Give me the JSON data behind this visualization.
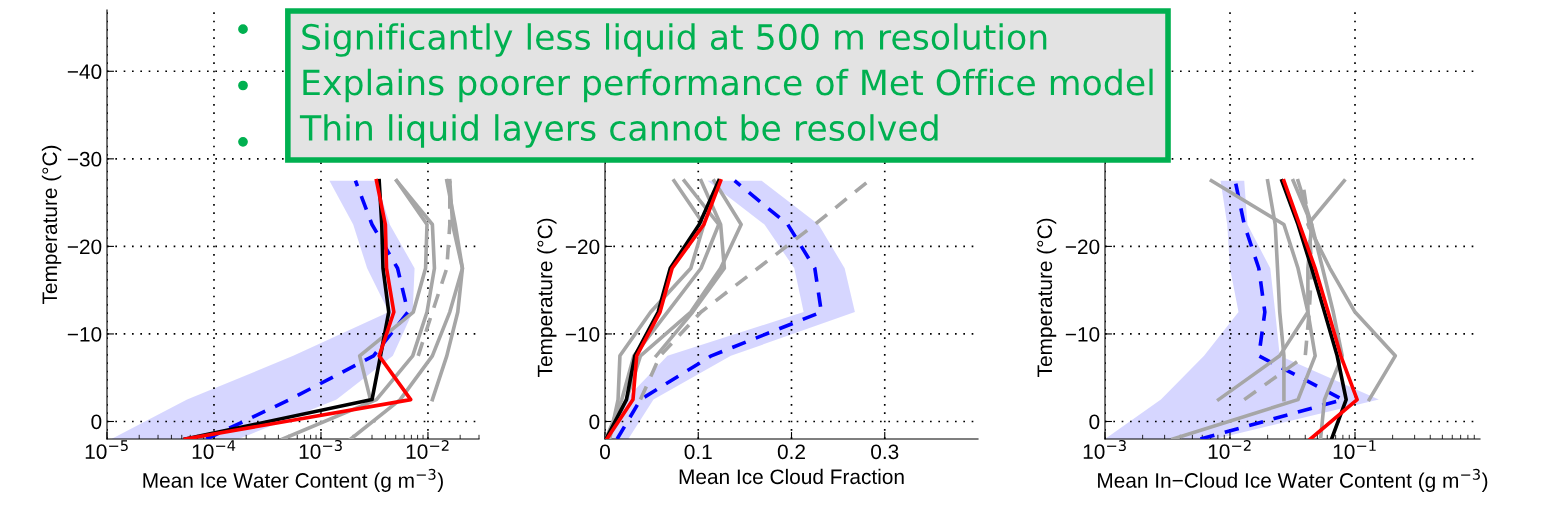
{
  "chart_data": [
    {
      "type": "line",
      "orientation": "horizontal",
      "log": "x",
      "grid": true,
      "xlabel": "Mean Ice Water Content (g m$^{−3}$)",
      "ylabel": "Temperature (°C)",
      "xlim": [
        1e-05,
        0.03
      ],
      "xticks": [
        {
          "value": 1e-05,
          "label": "10$^{−5}$"
        },
        {
          "value": 0.0001,
          "label": "10$^{−4}$"
        },
        {
          "value": 0.001,
          "label": "10$^{−3}$"
        },
        {
          "value": 0.01,
          "label": "10$^{−2}$"
        }
      ],
      "ylim": [
        2,
        -47
      ],
      "yticks": [
        {
          "value": 0,
          "label": "0"
        },
        {
          "value": -10,
          "label": "−10"
        },
        {
          "value": -20,
          "label": "−20"
        },
        {
          "value": -30,
          "label": "−30"
        },
        {
          "value": -40,
          "label": "−40"
        }
      ],
      "x": [
        2,
        -2.5,
        -7.5,
        -12.5,
        -17.5,
        -22.5,
        -27.5
      ],
      "annotations": [
        "Significantly less liquid at 500 m resolution",
        "Explains poorer performance of Met Office model",
        "Thin liquid layers cannot be resolved"
      ],
      "series": [
        {
          "color": "#0000ff",
          "line_style": "dashed",
          "values": [
            8.5e-05,
            0.00051,
            0.0031,
            0.0065,
            0.0052,
            0.003,
            0.0021
          ],
          "lower": [
            1.1e-05,
            5.6e-05,
            0.00055,
            0.0043,
            0.0027,
            0.002,
            0.0012
          ],
          "upper": [
            0.00017,
            0.0014,
            0.0047,
            0.0072,
            0.0075,
            0.0044,
            0.0033
          ]
        },
        {
          "color": "#a6a6a6",
          "line_style": "solid",
          "values": [
            0.00044,
            0.0033,
            0.0072,
            0.0098,
            0.0115,
            0.011,
            0.0051
          ]
        },
        {
          "color": "#a6a6a6",
          "line_style": "solid",
          "values": [
            0.0019,
            0.0055,
            0.011,
            0.016,
            0.021,
            0.018,
            0.015
          ]
        },
        {
          "color": "#a6a6a6",
          "line_style": "solid",
          "values": [
            null,
            0.011,
            0.015,
            0.019,
            0.021,
            0.017,
            0.016
          ]
        },
        {
          "color": "#a6a6a6",
          "line_style": "solid",
          "values": [
            null,
            0.0029,
            0.0023,
            0.0073,
            0.0095,
            0.0098,
            0.0051
          ]
        },
        {
          "color": "#a6a6a6",
          "line_style": "dashed",
          "values": [
            null,
            null,
            0.0081,
            0.011,
            0.015,
            0.016,
            0.016
          ]
        },
        {
          "color": "#000000",
          "line_style": "solid",
          "values": [
            5.4e-05,
            0.003,
            0.0036,
            0.0043,
            0.0038,
            0.0037,
            0.0035
          ]
        },
        {
          "color": "#ff0000",
          "line_style": "solid",
          "values": [
            5.4e-05,
            0.0069,
            0.0035,
            0.0048,
            0.0041,
            0.004,
            0.0033
          ]
        }
      ]
    },
    {
      "type": "line",
      "orientation": "horizontal",
      "grid": true,
      "xlabel": "Mean Ice Cloud Fraction",
      "ylabel": "Temperature (°C)",
      "xlim": [
        0,
        0.4
      ],
      "xticks": [
        0,
        0.1,
        0.2,
        0.3
      ],
      "ylim": [
        2,
        -47
      ],
      "yticks": [
        {
          "value": 0,
          "label": "0"
        },
        {
          "value": -10,
          "label": "−10"
        },
        {
          "value": -20,
          "label": "−20"
        },
        {
          "value": -30,
          "label": null
        },
        {
          "value": -40,
          "label": null
        }
      ],
      "x": [
        2,
        -2.5,
        -7.5,
        -12.5,
        -17.5,
        -22.5,
        -27.5
      ],
      "series": [
        {
          "color": "#0000ff",
          "line_style": "dashed",
          "values": [
            0.013,
            0.038,
            0.114,
            0.232,
            0.225,
            0.196,
            0.139
          ],
          "lower": [
            0.004,
            0.022,
            0.067,
            0.213,
            0.203,
            0.171,
            0.11
          ],
          "upper": [
            0.025,
            0.052,
            0.135,
            0.268,
            0.257,
            0.229,
            0.168
          ]
        },
        {
          "color": "#a6a6a6",
          "line_style": "solid",
          "values": [
            0.005,
            0.014,
            0.016,
            0.049,
            0.092,
            0.106,
            0.074
          ]
        },
        {
          "color": "#a6a6a6",
          "line_style": "solid",
          "values": [
            0.002,
            0.023,
            0.038,
            0.092,
            0.124,
            0.146,
            0.117
          ]
        },
        {
          "color": "#a6a6a6",
          "line_style": "solid",
          "values": [
            0.001,
            0.018,
            0.031,
            0.067,
            0.103,
            0.122,
            0.085
          ]
        },
        {
          "color": "#a6a6a6",
          "line_style": "solid",
          "values": [
            null,
            null,
            0.055,
            0.094,
            0.128,
            0.124,
            0.103
          ]
        },
        {
          "color": "#a6a6a6",
          "line_style": "dashed",
          "values": [
            null,
            0.038,
            0.059,
            0.103,
            0.164,
            0.225,
            0.283
          ]
        },
        {
          "color": "#000000",
          "line_style": "solid",
          "values": [
            0.001,
            0.023,
            0.032,
            0.057,
            0.07,
            0.101,
            0.122
          ]
        },
        {
          "color": "#ff0000",
          "line_style": "solid",
          "values": [
            0.002,
            0.03,
            0.034,
            0.059,
            0.072,
            0.106,
            0.124
          ]
        }
      ]
    },
    {
      "type": "line",
      "orientation": "horizontal",
      "log": "x",
      "grid": true,
      "xlabel": "Mean In−Cloud Ice Water Content (g m$^{−3}$)",
      "ylabel": "Temperature (°C)",
      "xlim": [
        0.001,
        1
      ],
      "xticks": [
        {
          "value": 0.001,
          "label": "10$^{−3}$"
        },
        {
          "value": 0.01,
          "label": "10$^{−2}$"
        },
        {
          "value": 0.1,
          "label": "10$^{−1}$"
        }
      ],
      "ylim": [
        2,
        -47
      ],
      "yticks": [
        {
          "value": 0,
          "label": "0"
        },
        {
          "value": -10,
          "label": "−10"
        },
        {
          "value": -20,
          "label": "−20"
        },
        {
          "value": -30,
          "label": null
        },
        {
          "value": -40,
          "label": null
        }
      ],
      "x": [
        2,
        -2.5,
        -7.5,
        -12.5,
        -17.5,
        -22.5,
        -27.5
      ],
      "series": [
        {
          "color": "#0000ff",
          "line_style": "dashed",
          "values": [
            0.0058,
            0.08,
            0.017,
            0.019,
            0.017,
            0.013,
            0.011
          ],
          "lower": [
            0.001,
            0.0028,
            0.0062,
            0.0117,
            0.01,
            0.0095,
            0.0084
          ],
          "upper": [
            0.0076,
            0.155,
            0.025,
            0.023,
            0.021,
            0.0138,
            0.013
          ]
        },
        {
          "color": "#a6a6a6",
          "line_style": "solid",
          "values": [
            null,
            0.13,
            0.21,
            0.1,
            0.063,
            0.042,
            0.082
          ]
        },
        {
          "color": "#a6a6a6",
          "line_style": "solid",
          "values": [
            0.0035,
            0.035,
            0.048,
            0.042,
            0.035,
            0.027,
            0.0071
          ]
        },
        {
          "color": "#a6a6a6",
          "line_style": "solid",
          "values": [
            null,
            0.0081,
            0.025,
            0.042,
            0.042,
            0.045,
            0.032
          ]
        },
        {
          "color": "#a6a6a6",
          "line_style": "solid",
          "values": [
            null,
            0.027,
            0.027,
            0.025,
            0.024,
            0.023,
            0.02
          ]
        },
        {
          "color": "#a6a6a6",
          "line_style": "solid",
          "values": [
            0.053,
            0.057,
            0.079,
            0.067,
            0.055,
            0.045,
            0.035
          ]
        },
        {
          "color": "#a6a6a6",
          "line_style": "dashed",
          "values": [
            null,
            0.013,
            0.04,
            0.043,
            0.045,
            0.043,
            0.038
          ]
        },
        {
          "color": "#000000",
          "line_style": "solid",
          "values": [
            0.065,
            0.085,
            0.072,
            0.057,
            0.045,
            0.035,
            0.026
          ]
        },
        {
          "color": "#ff0000",
          "line_style": "solid",
          "values": [
            0.044,
            0.104,
            0.077,
            0.061,
            0.048,
            0.036,
            0.027
          ]
        }
      ]
    }
  ]
}
